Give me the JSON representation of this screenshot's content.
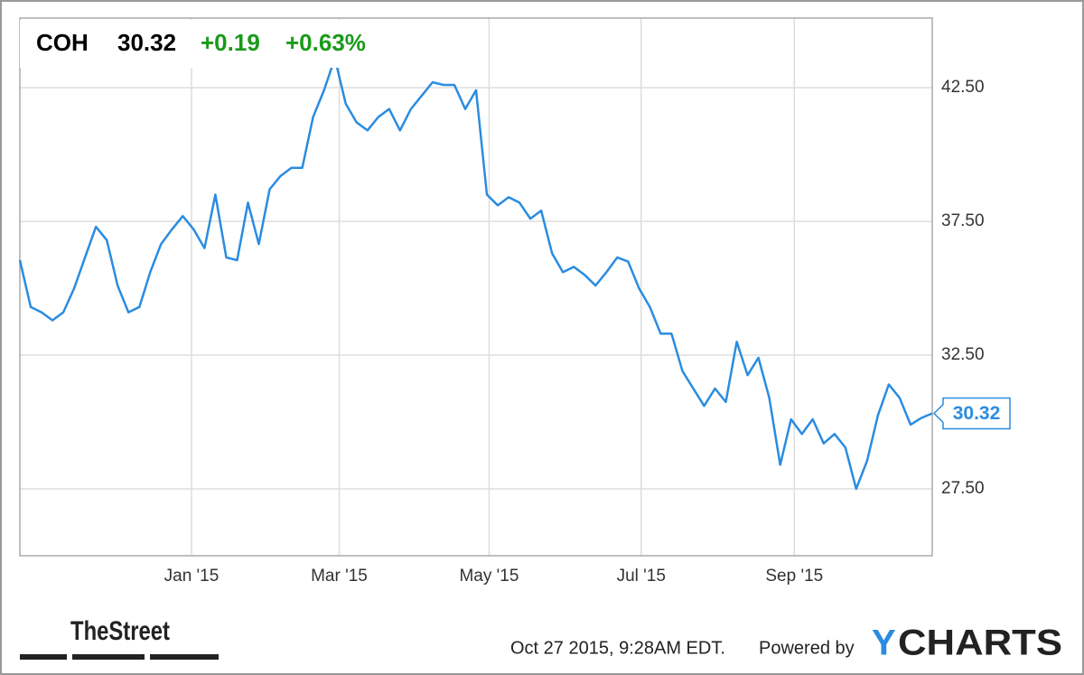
{
  "header": {
    "ticker": "COH",
    "price": "30.32",
    "change": "+0.19",
    "change_pct": "+0.63%"
  },
  "chart_data": {
    "type": "line",
    "series": [
      {
        "color": "#2a8ce0",
        "values": [
          36.05,
          34.3,
          34.1,
          33.8,
          34.1,
          35.0,
          36.15,
          37.3,
          36.8,
          35.1,
          34.1,
          34.3,
          35.6,
          36.65,
          37.2,
          37.7,
          37.2,
          36.5,
          38.5,
          36.15,
          36.05,
          38.2,
          36.65,
          38.7,
          39.2,
          39.5,
          39.5,
          41.4,
          42.4,
          43.6,
          41.9,
          41.2,
          40.9,
          41.4,
          41.7,
          40.9,
          41.7,
          42.2,
          42.7,
          42.6,
          42.6,
          41.7,
          42.4,
          38.5,
          38.1,
          38.4,
          38.2,
          37.6,
          37.9,
          36.3,
          35.6,
          35.8,
          35.5,
          35.1,
          35.6,
          36.15,
          36.0,
          35.0,
          34.3,
          33.3,
          33.3,
          31.9,
          31.25,
          30.6,
          31.25,
          30.75,
          33.0,
          31.75,
          32.4,
          30.9,
          28.4,
          30.1,
          29.55,
          30.1,
          29.2,
          29.55,
          29.05,
          27.5,
          28.55,
          30.25,
          31.4,
          30.9,
          29.9,
          30.15,
          30.32
        ]
      }
    ],
    "xlim": [
      0,
      84
    ],
    "xticks": [
      {
        "value": 15.8,
        "label": "Jan '15"
      },
      {
        "value": 29.4,
        "label": "Mar '15"
      },
      {
        "value": 43.2,
        "label": "May '15"
      },
      {
        "value": 57.2,
        "label": "Jul '15"
      },
      {
        "value": 71.3,
        "label": "Sep '15"
      }
    ],
    "ylim": [
      25,
      45.1
    ],
    "yticks": [
      {
        "value": 27.5,
        "label": "27.50"
      },
      {
        "value": 32.5,
        "label": "32.50"
      },
      {
        "value": 37.5,
        "label": "37.50"
      },
      {
        "value": 42.5,
        "label": "42.50"
      }
    ],
    "grid": true
  },
  "footer": {
    "source": "TheStreet",
    "timestamp": "Oct 27 2015, 9:28AM EDT.",
    "powered": "Powered by",
    "logo_y": "Y",
    "logo_rest": "CHARTS"
  }
}
